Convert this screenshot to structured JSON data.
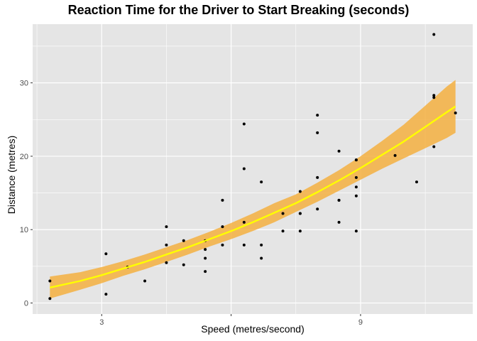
{
  "chart_data": {
    "type": "scatter",
    "title": "Reaction Time for the Driver to Start Breaking (seconds)",
    "xlabel": "Speed (metres/second)",
    "ylabel": "Distance (metres)",
    "xlim": [
      1.4,
      11.6
    ],
    "ylim": [
      -1.5,
      38
    ],
    "x_ticks": [
      3,
      6,
      9
    ],
    "x_tick_labels": [
      "3",
      "",
      "9"
    ],
    "y_ticks": [
      0,
      10,
      20,
      30
    ],
    "y_tick_labels": [
      "0",
      "10",
      "20",
      "30"
    ],
    "grid": true,
    "legend": "none",
    "colors": {
      "panel": "#e5e5e5",
      "grid": "#ffffff",
      "points": "#000000",
      "fit_line": "#ffff00",
      "confidence_band": "#f5b041"
    },
    "series": [
      {
        "type": "points",
        "x": [
          1.8,
          1.8,
          3.1,
          3.1,
          3.6,
          4.0,
          4.5,
          4.5,
          4.5,
          4.9,
          4.9,
          5.4,
          5.4,
          5.4,
          5.4,
          5.8,
          5.8,
          5.8,
          6.3,
          6.3,
          6.3,
          6.3,
          6.7,
          6.7,
          6.7,
          7.2,
          7.2,
          7.6,
          7.6,
          7.6,
          7.6,
          8.0,
          8.0,
          8.0,
          8.0,
          8.5,
          8.5,
          8.5,
          8.5,
          8.9,
          8.9,
          8.9,
          8.9,
          8.9,
          8.9,
          9.8,
          10.3,
          10.7,
          10.7,
          10.7,
          10.7,
          11.2
        ],
        "y": [
          0.6,
          3.0,
          1.2,
          6.7,
          4.9,
          3.0,
          5.5,
          7.9,
          10.4,
          5.2,
          8.5,
          4.3,
          6.1,
          7.3,
          8.5,
          7.9,
          10.4,
          14.0,
          7.9,
          11.0,
          18.3,
          24.4,
          6.1,
          7.9,
          16.5,
          9.8,
          12.2,
          9.8,
          12.2,
          12.2,
          15.2,
          12.8,
          17.1,
          23.2,
          25.6,
          11.0,
          14.0,
          14.0,
          20.7,
          9.8,
          14.6,
          15.8,
          17.1,
          19.5,
          19.5,
          20.1,
          16.5,
          21.3,
          28.0,
          28.3,
          36.6,
          25.9
        ]
      },
      {
        "type": "fit",
        "name": "",
        "x": [
          1.8,
          2.5,
          3.0,
          3.5,
          4.0,
          4.5,
          5.0,
          5.5,
          6.0,
          6.5,
          7.0,
          7.5,
          8.0,
          8.5,
          9.0,
          9.5,
          10.0,
          10.5,
          11.0,
          11.2
        ],
        "y": [
          2.1,
          3.0,
          3.8,
          4.7,
          5.6,
          6.6,
          7.6,
          8.7,
          9.8,
          11.0,
          12.3,
          13.6,
          15.1,
          16.7,
          18.4,
          20.2,
          22.0,
          24.0,
          26.0,
          26.8
        ],
        "lower": [
          0.6,
          1.8,
          2.7,
          3.7,
          4.6,
          5.6,
          6.6,
          7.7,
          8.7,
          9.8,
          11.0,
          12.4,
          13.8,
          15.3,
          16.8,
          18.3,
          19.7,
          21.1,
          22.5,
          23.2
        ],
        "upper": [
          3.6,
          4.2,
          4.9,
          5.7,
          6.6,
          7.6,
          8.6,
          9.7,
          10.9,
          12.2,
          13.6,
          14.8,
          16.4,
          18.1,
          20.0,
          22.1,
          24.3,
          26.9,
          29.5,
          30.4
        ]
      }
    ]
  }
}
